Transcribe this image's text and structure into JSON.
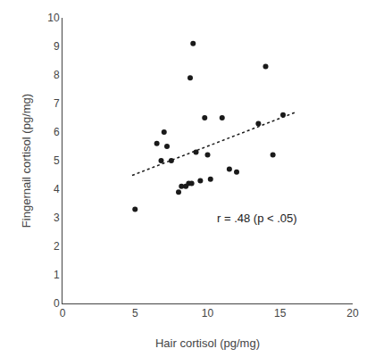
{
  "chart_data": {
    "type": "scatter",
    "xlabel": "Hair cortisol (pg/mg)",
    "ylabel": "Fingernail cortisol (pg/mg)",
    "series": [
      {
        "type": "scatter",
        "color": "#1a1a1a",
        "marker": "circle",
        "x": [
          5.0,
          6.5,
          6.8,
          7.0,
          7.2,
          7.5,
          8.0,
          8.2,
          8.5,
          8.7,
          8.8,
          8.9,
          9.0,
          9.2,
          9.5,
          9.8,
          10.0,
          10.2,
          11.0,
          11.5,
          12.0,
          13.5,
          14.0,
          14.5,
          15.2
        ],
        "values": [
          3.3,
          5.6,
          5.0,
          6.0,
          5.5,
          5.0,
          3.9,
          4.1,
          4.1,
          4.2,
          7.9,
          4.2,
          9.1,
          5.3,
          4.3,
          6.5,
          5.2,
          4.35,
          6.5,
          4.7,
          4.6,
          6.3,
          8.3,
          5.2,
          6.6
        ]
      },
      {
        "type": "line",
        "color": "#1a1a1a",
        "line_style": "dotted",
        "x": [
          4.8,
          16.0
        ],
        "values": [
          4.484,
          6.682
        ]
      }
    ],
    "annotations": [
      {
        "text": "r = .48 (p < .05)",
        "x": 10.5,
        "y": 2.7,
        "color": "#1a1a1a"
      }
    ],
    "xlim": [
      0,
      20
    ],
    "ylim": [
      0,
      10
    ],
    "xticks": [
      0,
      5,
      10,
      15,
      20
    ],
    "yticks": [
      0,
      1,
      2,
      3,
      4,
      5,
      6,
      7,
      8,
      9,
      10
    ],
    "grid": false
  }
}
